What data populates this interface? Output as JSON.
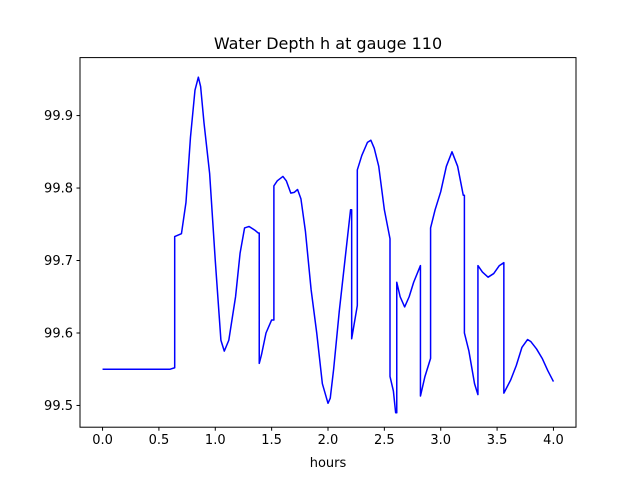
{
  "chart_data": {
    "type": "line",
    "title": "Water Depth h at gauge 110",
    "xlabel": "hours",
    "ylabel": "",
    "xlim": [
      -0.2,
      4.2
    ],
    "ylim": [
      99.47,
      99.98
    ],
    "xticks": [
      0.0,
      0.5,
      1.0,
      1.5,
      2.0,
      2.5,
      3.0,
      3.5,
      4.0
    ],
    "xtick_labels": [
      "0.0",
      "0.5",
      "1.0",
      "1.5",
      "2.0",
      "2.5",
      "3.0",
      "3.5",
      "4.0"
    ],
    "yticks": [
      99.5,
      99.6,
      99.7,
      99.8,
      99.9
    ],
    "ytick_labels": [
      "99.5",
      "99.6",
      "99.7",
      "99.8",
      "99.9"
    ],
    "grid": false,
    "series": [
      {
        "color": "#0000ff",
        "x": [
          0.0,
          0.1,
          0.2,
          0.3,
          0.4,
          0.5,
          0.6,
          0.64,
          0.64,
          0.7,
          0.74,
          0.78,
          0.82,
          0.85,
          0.87,
          0.9,
          0.95,
          1.0,
          1.05,
          1.08,
          1.12,
          1.18,
          1.22,
          1.26,
          1.3,
          1.35,
          1.38,
          1.39,
          1.39,
          1.41,
          1.45,
          1.5,
          1.52,
          1.52,
          1.55,
          1.6,
          1.63,
          1.67,
          1.7,
          1.73,
          1.76,
          1.8,
          1.85,
          1.9,
          1.95,
          2.0,
          2.02,
          2.05,
          2.1,
          2.15,
          2.2,
          2.21,
          2.21,
          2.26,
          2.26,
          2.3,
          2.35,
          2.38,
          2.41,
          2.45,
          2.5,
          2.55,
          2.55,
          2.58,
          2.6,
          2.61,
          2.61,
          2.64,
          2.68,
          2.72,
          2.76,
          2.82,
          2.82,
          2.86,
          2.9,
          2.91,
          2.91,
          2.95,
          3.0,
          3.05,
          3.1,
          3.15,
          3.2,
          3.21,
          3.21,
          3.25,
          3.3,
          3.33,
          3.33,
          3.37,
          3.42,
          3.47,
          3.52,
          3.56,
          3.56,
          3.62,
          3.67,
          3.72,
          3.77,
          3.8,
          3.85,
          3.9,
          3.95,
          4.0
        ],
        "y": [
          99.55,
          99.55,
          99.55,
          99.55,
          99.55,
          99.55,
          99.55,
          99.552,
          99.733,
          99.737,
          99.78,
          99.87,
          99.935,
          99.953,
          99.94,
          99.89,
          99.82,
          99.7,
          99.59,
          99.575,
          99.59,
          99.65,
          99.71,
          99.745,
          99.747,
          99.742,
          99.738,
          99.738,
          99.558,
          99.57,
          99.6,
          99.618,
          99.618,
          99.803,
          99.81,
          99.816,
          99.81,
          99.793,
          99.794,
          99.798,
          99.785,
          99.74,
          99.66,
          99.6,
          99.53,
          99.503,
          99.51,
          99.55,
          99.63,
          99.7,
          99.77,
          99.77,
          99.592,
          99.638,
          99.825,
          99.845,
          99.863,
          99.866,
          99.855,
          99.83,
          99.77,
          99.73,
          99.54,
          99.52,
          99.49,
          99.49,
          99.67,
          99.65,
          99.636,
          99.65,
          99.67,
          99.693,
          99.513,
          99.54,
          99.56,
          99.565,
          99.745,
          99.77,
          99.795,
          99.83,
          99.85,
          99.83,
          99.79,
          99.79,
          99.6,
          99.575,
          99.53,
          99.515,
          99.693,
          99.684,
          99.677,
          99.682,
          99.693,
          99.697,
          99.517,
          99.535,
          99.555,
          99.58,
          99.591,
          99.588,
          99.578,
          99.565,
          99.548,
          99.533
        ]
      }
    ]
  }
}
